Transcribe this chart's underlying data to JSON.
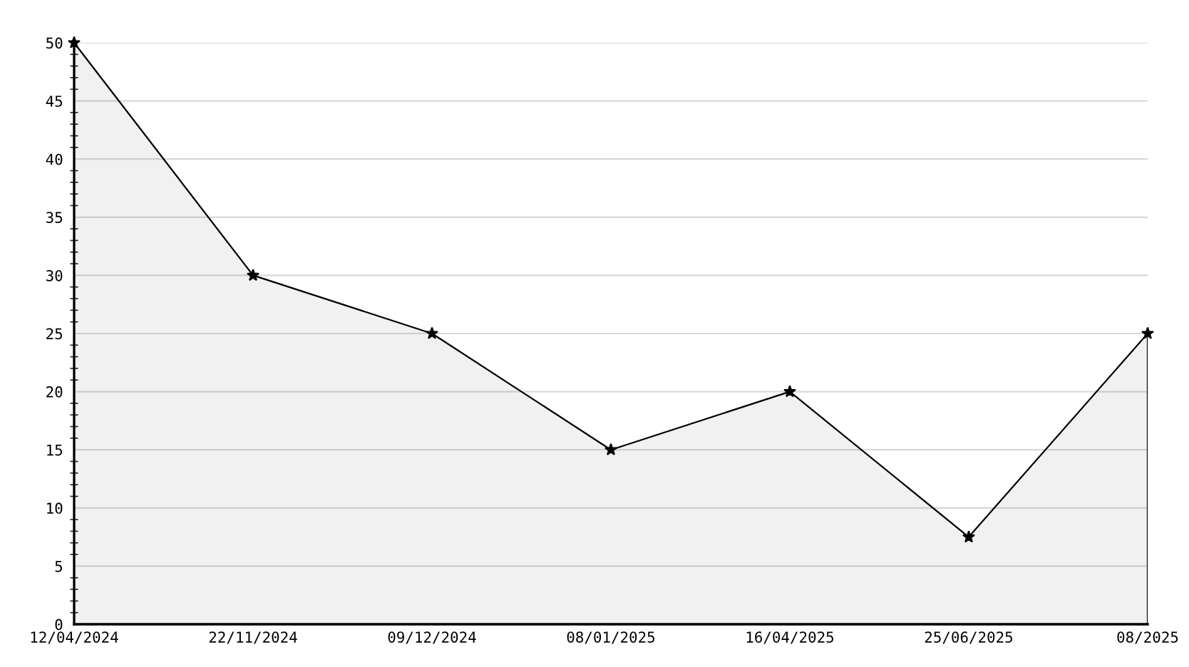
{
  "chart_data": {
    "type": "area",
    "categories": [
      "12/04/2024",
      "22/11/2024",
      "09/12/2024",
      "08/01/2025",
      "16/04/2025",
      "25/06/2025",
      "08/2025"
    ],
    "series": [
      {
        "color": "#000000",
        "values": [
          50,
          30,
          25,
          15,
          20,
          7.5,
          25
        ]
      }
    ],
    "ylim": [
      0,
      50
    ],
    "yticks": [
      0,
      5,
      10,
      15,
      20,
      25,
      30,
      35,
      40,
      45,
      50
    ],
    "grid": "y",
    "marker": "star",
    "line_style": "solid"
  }
}
